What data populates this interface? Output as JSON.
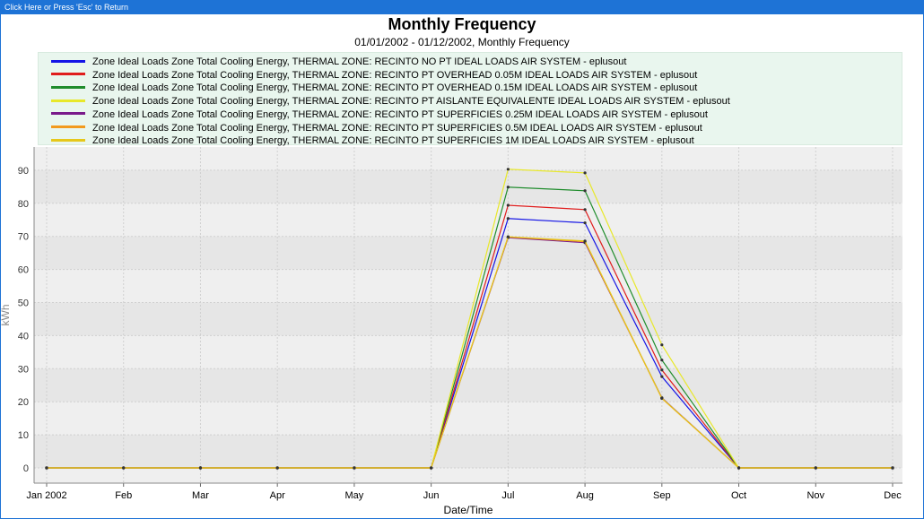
{
  "window": {
    "return_hint": "Click Here or Press 'Esc' to Return"
  },
  "chart_data": {
    "type": "line",
    "title": "Monthly Frequency",
    "subtitle": "01/01/2002 - 01/12/2002, Monthly Frequency",
    "xlabel": "Date/Time",
    "ylabel": "kWh",
    "ylim": [
      0,
      95
    ],
    "yticks": [
      0,
      10,
      20,
      30,
      40,
      50,
      60,
      70,
      80,
      90
    ],
    "categories": [
      "Jan 2002",
      "Feb",
      "Mar",
      "Apr",
      "May",
      "Jun",
      "Jul",
      "Aug",
      "Sep",
      "Oct",
      "Nov",
      "Dec"
    ],
    "grid": true,
    "legend_position": "top",
    "series": [
      {
        "name": "Zone Ideal Loads Zone Total Cooling Energy, THERMAL ZONE: RECINTO NO PT IDEAL LOADS AIR SYSTEM - eplusout",
        "color": "#1414e6",
        "values": [
          0,
          0,
          0,
          0,
          0,
          0,
          75.4,
          74.1,
          27.6,
          0,
          0,
          0
        ]
      },
      {
        "name": "Zone Ideal Loads Zone Total Cooling Energy, THERMAL ZONE: RECINTO PT OVERHEAD 0.05M IDEAL LOADS AIR SYSTEM - eplusout",
        "color": "#e01c1c",
        "values": [
          0,
          0,
          0,
          0,
          0,
          0,
          79.4,
          78.1,
          29.6,
          0,
          0,
          0
        ]
      },
      {
        "name": "Zone Ideal Loads Zone Total Cooling Energy, THERMAL ZONE: RECINTO PT OVERHEAD 0.15M IDEAL LOADS AIR SYSTEM - eplusout",
        "color": "#1f8c2c",
        "values": [
          0,
          0,
          0,
          0,
          0,
          0,
          84.9,
          83.8,
          32.6,
          0,
          0,
          0
        ]
      },
      {
        "name": "Zone Ideal Loads Zone Total Cooling Energy, THERMAL ZONE: RECINTO PT AISLANTE EQUIVALENTE IDEAL LOADS AIR SYSTEM - eplusout",
        "color": "#e8e82a",
        "values": [
          0,
          0,
          0,
          0,
          0,
          0,
          90.3,
          89.2,
          37.2,
          0,
          0,
          0
        ]
      },
      {
        "name": "Zone Ideal Loads Zone Total Cooling Energy, THERMAL ZONE: RECINTO PT SUPERFICIES 0.25M IDEAL LOADS AIR SYSTEM - eplusout",
        "color": "#7a1a8a",
        "values": [
          0,
          0,
          0,
          0,
          0,
          0,
          69.6,
          68.1,
          21.2,
          0,
          0,
          0
        ]
      },
      {
        "name": "Zone Ideal Loads Zone Total Cooling Energy, THERMAL ZONE: RECINTO PT SUPERFICIES 0.5M IDEAL LOADS AIR SYSTEM - eplusout",
        "color": "#f29a1d",
        "values": [
          0,
          0,
          0,
          0,
          0,
          0,
          69.8,
          68.4,
          21.0,
          0,
          0,
          0
        ]
      },
      {
        "name": "Zone Ideal Loads Zone Total Cooling Energy, THERMAL ZONE: RECINTO PT SUPERFICIES 1M IDEAL LOADS AIR SYSTEM - eplusout",
        "color": "#e6c81a",
        "values": [
          0,
          0,
          0,
          0,
          0,
          0,
          69.9,
          68.6,
          21.1,
          0,
          0,
          0
        ]
      }
    ]
  }
}
